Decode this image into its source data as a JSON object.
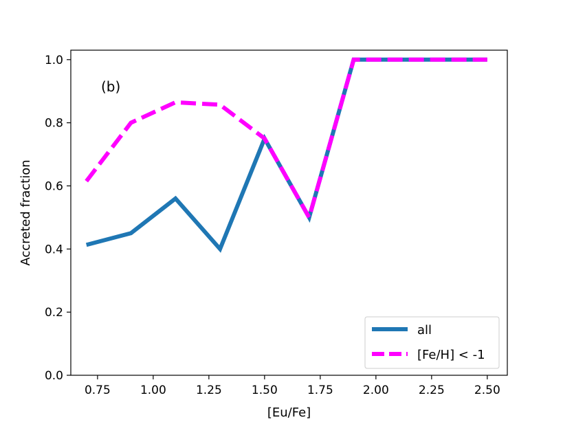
{
  "chart_data": {
    "type": "line",
    "title": "",
    "xlabel": "[Eu/Fe]",
    "ylabel": "Accreted fraction",
    "annotation": "(b)",
    "xlim": [
      0.63,
      2.59
    ],
    "ylim": [
      0.0,
      1.03
    ],
    "x_ticks": [
      0.75,
      1.0,
      1.25,
      1.5,
      1.75,
      2.0,
      2.25,
      2.5
    ],
    "x_tick_labels": [
      "0.75",
      "1.00",
      "1.25",
      "1.50",
      "1.75",
      "2.00",
      "2.25",
      "2.50"
    ],
    "y_ticks": [
      0.0,
      0.2,
      0.4,
      0.6,
      0.8,
      1.0
    ],
    "y_tick_labels": [
      "0.0",
      "0.2",
      "0.4",
      "0.6",
      "0.8",
      "1.0"
    ],
    "grid": false,
    "legend_position": "lower-right",
    "x": [
      0.7,
      0.9,
      1.1,
      1.3,
      1.5,
      1.7,
      1.9,
      2.1,
      2.3,
      2.5
    ],
    "series": [
      {
        "name": "all",
        "color": "#1f77b4",
        "style": "solid",
        "values": [
          0.413,
          0.45,
          0.56,
          0.4,
          0.75,
          0.5,
          1.0,
          1.0,
          1.0,
          1.0
        ]
      },
      {
        "name": "[Fe/H] < -1",
        "color": "#ff00ff",
        "style": "dashed",
        "values": [
          0.615,
          0.8,
          0.865,
          0.857,
          0.75,
          0.5,
          1.0,
          1.0,
          1.0,
          1.0
        ]
      }
    ]
  }
}
